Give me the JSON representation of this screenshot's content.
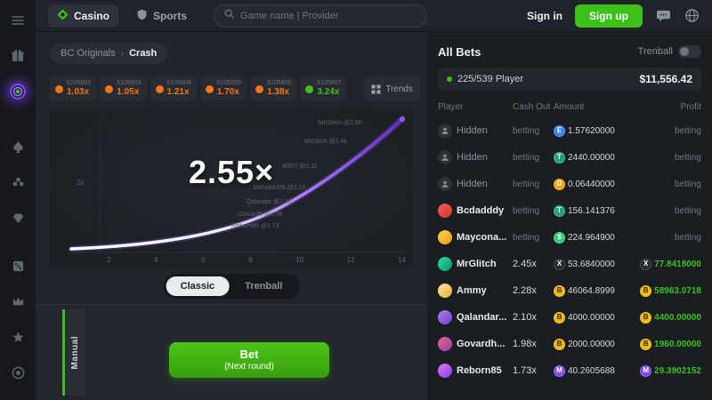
{
  "colors": {
    "green": "#3bc117",
    "orange": "#f97316",
    "purple": "#7c3aed"
  },
  "header": {
    "casino_label": "Casino",
    "sports_label": "Sports",
    "search_placeholder": "Game name | Provider",
    "sign_in": "Sign in",
    "sign_up": "Sign up"
  },
  "breadcrumb": {
    "root": "BC Originals",
    "separator": "›",
    "current": "Crash"
  },
  "history": {
    "trends_label": "Trends",
    "items": [
      {
        "id": "6105802",
        "mult": "1.03x",
        "win": false
      },
      {
        "id": "6105803",
        "mult": "1.05x",
        "win": false
      },
      {
        "id": "6105804",
        "mult": "1.21x",
        "win": false
      },
      {
        "id": "6105805",
        "mult": "1.70x",
        "win": false
      },
      {
        "id": "6105806",
        "mult": "1.38x",
        "win": false
      },
      {
        "id": "6105807",
        "mult": "3.24x",
        "win": true
      }
    ]
  },
  "game": {
    "current_multiplier": "2.55×",
    "y_axis_label": "2x",
    "x_ticks": [
      "2",
      "4",
      "6",
      "8",
      "10",
      "12",
      "14"
    ],
    "markers": [
      {
        "label": "MrGlitch @2.5K",
        "x": 74,
        "y": 6
      },
      {
        "label": "MrGlitch @2.4k",
        "x": 70,
        "y": 18
      },
      {
        "label": "Bill07 @2.31",
        "x": 64,
        "y": 34
      },
      {
        "label": "Mshabit305 @2.16",
        "x": 56,
        "y": 48
      },
      {
        "label": "Qalandar @2.10",
        "x": 54,
        "y": 57
      },
      {
        "label": "Govardh @1.98",
        "x": 52,
        "y": 65
      },
      {
        "label": "Reborn85 @1.73",
        "x": 50,
        "y": 72
      }
    ],
    "tabs": [
      "Classic",
      "Trenball"
    ],
    "mode_label": "Manual",
    "bet_line1": "Bet",
    "bet_line2": "(Next round)"
  },
  "all_bets": {
    "title": "All Bets",
    "toggle_label": "Trenball",
    "players_label": "225/539 Player",
    "total": "$11,556.42",
    "columns": [
      "Player",
      "Cash Out",
      "Amount",
      "Profit"
    ],
    "rows": [
      {
        "name": "Hidden",
        "hidden": true,
        "cashout": "betting",
        "amount": "1.57620000",
        "amount_coin": {
          "bg": "#3b82f6",
          "sym": "E"
        },
        "profit": "betting"
      },
      {
        "name": "Hidden",
        "hidden": true,
        "cashout": "betting",
        "amount": "2440.00000",
        "amount_coin": {
          "bg": "#26a17b",
          "sym": "T"
        },
        "profit": "betting"
      },
      {
        "name": "Hidden",
        "hidden": true,
        "cashout": "betting",
        "amount": "0.06440000",
        "amount_coin": {
          "bg": "#f2a900",
          "sym": "D"
        },
        "profit": "betting"
      },
      {
        "name": "Bcdadddy",
        "hidden": false,
        "avatar": [
          "#ff5c5c",
          "#c0392b"
        ],
        "cashout": "betting",
        "amount": "156.141376",
        "amount_coin": {
          "bg": "#26a17b",
          "sym": "T"
        },
        "profit": "betting"
      },
      {
        "name": "Maycona...",
        "hidden": false,
        "avatar": [
          "#ffd34d",
          "#f39c12"
        ],
        "cashout": "betting",
        "amount": "224.964900",
        "amount_coin": {
          "bg": "#2ecc71",
          "sym": "$"
        },
        "profit": "betting"
      },
      {
        "name": "MrGlitch",
        "hidden": false,
        "avatar": [
          "#24e0a4",
          "#0e8f6f"
        ],
        "cashout": "2.45x",
        "amount": "53.6840000",
        "amount_coin": {
          "bg": "#23292f",
          "sym": "X"
        },
        "profit": "77.8418000",
        "profit_coin": {
          "bg": "#23292f",
          "sym": "X"
        }
      },
      {
        "name": "Ammy",
        "hidden": false,
        "avatar": [
          "#ffe29a",
          "#e8b33a"
        ],
        "cashout": "2.28x",
        "amount": "46064.8999",
        "amount_coin": {
          "bg": "#f0b90b",
          "sym": "B",
          "fg": "#3a2c00"
        },
        "profit": "58963.0718",
        "profit_coin": {
          "bg": "#f0b90b",
          "sym": "B",
          "fg": "#3a2c00"
        }
      },
      {
        "name": "Qalandar...",
        "hidden": false,
        "avatar": [
          "#b084f5",
          "#6d3bd1"
        ],
        "cashout": "2.10x",
        "amount": "4000.00000",
        "amount_coin": {
          "bg": "#f0b90b",
          "sym": "B",
          "fg": "#3a2c00"
        },
        "profit": "4400.00000",
        "profit_coin": {
          "bg": "#f0b90b",
          "sym": "B",
          "fg": "#3a2c00"
        }
      },
      {
        "name": "Govardh...",
        "hidden": false,
        "avatar": [
          "#f06292",
          "#8e44ad"
        ],
        "cashout": "1.98x",
        "amount": "2000.00000",
        "amount_coin": {
          "bg": "#f0b90b",
          "sym": "B",
          "fg": "#3a2c00"
        },
        "profit": "1960.00000",
        "profit_coin": {
          "bg": "#f0b90b",
          "sym": "B",
          "fg": "#3a2c00"
        }
      },
      {
        "name": "Reborn85",
        "hidden": false,
        "avatar": [
          "#e879f9",
          "#7c3aed"
        ],
        "cashout": "1.73x",
        "amount": "40.2605688",
        "amount_coin": {
          "bg": "#8247e5",
          "sym": "M"
        },
        "profit": "29.3902152",
        "profit_coin": {
          "bg": "#8247e5",
          "sym": "M"
        }
      }
    ]
  }
}
